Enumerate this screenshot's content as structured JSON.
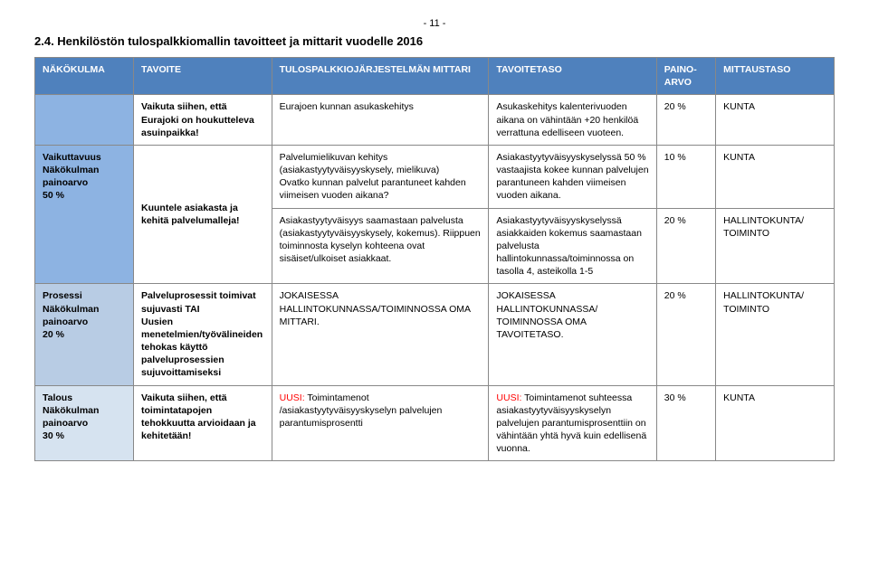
{
  "page_number": "- 11 -",
  "heading": "2.4. Henkilöstön tulospalkkiomallin tavoitteet ja mittarit vuodelle 2016",
  "colors": {
    "header_bg": "#4f81bd",
    "row1_bg": "#8db3e2",
    "row2_bg": "#b8cce4",
    "row3_bg": "#d6e3f0",
    "red": "#ff0000",
    "border": "#888888"
  },
  "headers": {
    "c0": "NÄKÖKULMA",
    "c1": "TAVOITE",
    "c2": "TULOSPALKKIOJÄRJESTELMÄN MITTARI",
    "c3": "TAVOITETASO",
    "c4": "PAINO-ARVO",
    "c5": "MITTAUSTASO"
  },
  "rows": [
    {
      "label": "",
      "label_bg": "#8db3e2",
      "cells": [
        {
          "text": "Vaikuta siihen, että Eurajoki on houkutteleva asuinpaikka!",
          "bold": true
        },
        {
          "text": "Eurajoen kunnan asukaskehitys"
        },
        {
          "text": "Asukaskehitys kalenterivuoden aikana on vähintään +20 henkilöä verrattuna edelliseen vuoteen."
        },
        {
          "text": "20 %"
        },
        {
          "text": "KUNTA"
        }
      ]
    },
    {
      "label": "Vaikuttavuus\nNäkökulman painoarvo\n50 %",
      "label_bg": "#8db3e2",
      "rowspan": 2,
      "tavoite": {
        "text": "Kuuntele asiakasta ja kehitä palvelumalleja!",
        "bold": true,
        "rowspan": 2
      },
      "cells": [
        {
          "text": "Palvelumielikuvan kehitys (asiakastyytyväisyyskysely, mielikuva)\nOvatko kunnan palvelut parantuneet kahden viimeisen vuoden aikana?"
        },
        {
          "text": "Asiakastyytyväisyyskyselyssä 50 % vastaajista kokee kunnan palvelujen parantuneen kahden viimeisen vuoden aikana."
        },
        {
          "text": "10 %"
        },
        {
          "text": "KUNTA"
        }
      ]
    },
    {
      "cells": [
        {
          "text": "Asiakastyytyväisyys saamastaan palvelusta (asiakastyytyväisyyskysely, kokemus). Riippuen toiminnosta kyselyn kohteena ovat sisäiset/ulkoiset asiakkaat."
        },
        {
          "text": "Asiakastyytyväisyyskyselyssä asiakkaiden kokemus saamastaan palvelusta hallintokunnassa/toiminnossa on tasolla 4, asteikolla 1-5"
        },
        {
          "text": "20 %"
        },
        {
          "text": "HALLINTOKUNTA/ TOIMINTO"
        }
      ]
    },
    {
      "label": "Prosessi\nNäkökulman painoarvo\n20 %",
      "label_bg": "#b8cce4",
      "cells": [
        {
          "text": "Palveluprosessit toimivat sujuvasti TAI\nUusien menetelmien/työvälineiden tehokas käyttö palveluprosessien sujuvoittamiseksi",
          "bold": true
        },
        {
          "text": "JOKAISESSA HALLINTOKUNNASSA/TOIMINNOSSA OMA MITTARI."
        },
        {
          "text": "JOKAISESSA HALLINTOKUNNASSA/ TOIMINNOSSA OMA TAVOITETASO."
        },
        {
          "text": "20 %"
        },
        {
          "text": "HALLINTOKUNTA/ TOIMINTO"
        }
      ]
    },
    {
      "label": "Talous\nNäkökulman painoarvo\n30 %",
      "label_bg": "#d6e3f0",
      "cells": [
        {
          "text": "Vaikuta siihen, että toimintatapojen tehokkuutta arvioidaan ja kehitetään!",
          "bold": true
        },
        {
          "prefix": "UUSI:",
          "text": " Toimintamenot /asiakastyytyväisyyskyselyn palvelujen parantumisprosentti"
        },
        {
          "prefix": "UUSI:",
          "text": " Toimintamenot suhteessa asiakastyytyväisyyskyselyn palvelujen parantumisprosenttiin on vähintään yhtä hyvä kuin edellisenä vuonna."
        },
        {
          "text": "30 %"
        },
        {
          "text": "KUNTA"
        }
      ]
    }
  ]
}
